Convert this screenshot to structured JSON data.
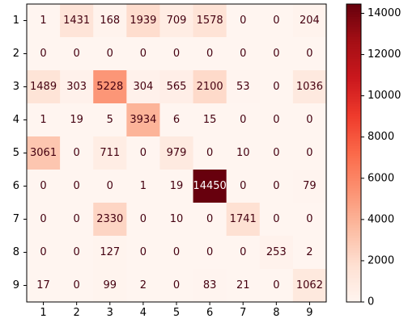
{
  "chart_data": {
    "type": "heatmap",
    "title": "",
    "xlabel": "",
    "ylabel": "",
    "x_categories": [
      "1",
      "2",
      "3",
      "4",
      "5",
      "6",
      "7",
      "8",
      "9"
    ],
    "y_categories": [
      "1",
      "2",
      "3",
      "4",
      "5",
      "6",
      "7",
      "8",
      "9"
    ],
    "matrix": [
      [
        1,
        1431,
        168,
        1939,
        709,
        1578,
        0,
        0,
        204
      ],
      [
        0,
        0,
        0,
        0,
        0,
        0,
        0,
        0,
        0
      ],
      [
        1489,
        303,
        5228,
        304,
        565,
        2100,
        53,
        0,
        1036
      ],
      [
        1,
        19,
        5,
        3934,
        6,
        15,
        0,
        0,
        0
      ],
      [
        3061,
        0,
        711,
        0,
        979,
        0,
        10,
        0,
        0
      ],
      [
        0,
        0,
        0,
        1,
        19,
        14450,
        0,
        0,
        79
      ],
      [
        0,
        0,
        2330,
        0,
        10,
        0,
        1741,
        0,
        0
      ],
      [
        0,
        0,
        127,
        0,
        0,
        0,
        0,
        253,
        2
      ],
      [
        17,
        0,
        99,
        2,
        0,
        83,
        21,
        0,
        1062
      ]
    ],
    "colormap": "Reds",
    "colorbar": {
      "vmin": 0,
      "vmax": 14450,
      "ticks": [
        0,
        2000,
        4000,
        6000,
        8000,
        10000,
        12000,
        14000
      ]
    },
    "grid": false,
    "legend": "none"
  }
}
